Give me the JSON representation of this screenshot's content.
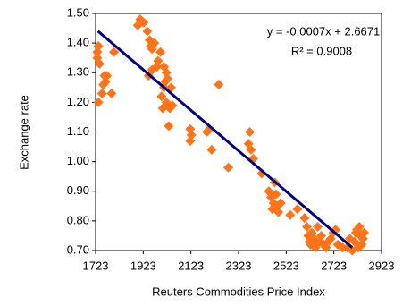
{
  "chart_data": {
    "type": "scatter",
    "xlabel": "Reuters Commodities Price Index",
    "ylabel": "Exchange rate",
    "annotations": [
      "y = -0.0007x + 2.6671",
      "R² = 0.9008"
    ],
    "xlim": [
      1723,
      2923
    ],
    "xticks": [
      1723,
      1923,
      2123,
      2323,
      2523,
      2723,
      2923
    ],
    "ylim": [
      0.7,
      1.5
    ],
    "yticks": [
      {
        "value": 0.7,
        "label": "0.70"
      },
      {
        "value": 0.8,
        "label": "0.80"
      },
      {
        "value": 0.9,
        "label": "0.90"
      },
      {
        "value": 1.0,
        "label": "1.00"
      },
      {
        "value": 1.1,
        "label": "1.10"
      },
      {
        "value": 1.2,
        "label": "1.20"
      },
      {
        "value": 1.3,
        "label": "1.30"
      },
      {
        "value": 1.4,
        "label": "1.40"
      },
      {
        "value": 1.5,
        "label": "1.50"
      }
    ],
    "grid": false,
    "series": [
      {
        "color": "#ff7418",
        "x": [
          1730,
          1730,
          1735,
          1740,
          1735,
          1750,
          1755,
          1760,
          1770,
          1765,
          1790,
          1800,
          1900,
          1910,
          1920,
          1925,
          1940,
          1950,
          1955,
          1960,
          1970,
          1945,
          1960,
          1980,
          1985,
          1995,
          2010,
          2020,
          2015,
          2025,
          2040,
          2000,
          2005,
          2020,
          2035,
          2045,
          2030,
          2010,
          2120,
          2125,
          2120,
          2190,
          2200,
          2210,
          2240,
          2280,
          2370,
          2365,
          2375,
          2385,
          2420,
          2450,
          2460,
          2470,
          2465,
          2475,
          2480,
          2485,
          2490,
          2500,
          2540,
          2570,
          2600,
          2610,
          2615,
          2620,
          2625,
          2630,
          2640,
          2645,
          2650,
          2655,
          2660,
          2670,
          2680,
          2690,
          2700,
          2710,
          2720,
          2730,
          2740,
          2760,
          2780,
          2790,
          2800,
          2810,
          2815,
          2820,
          2830,
          2835,
          2840,
          2845,
          2850,
          2825
        ],
        "values": [
          1.37,
          1.35,
          1.39,
          1.33,
          1.2,
          1.23,
          1.26,
          1.29,
          1.29,
          1.27,
          1.23,
          1.37,
          1.46,
          1.48,
          1.47,
          1.47,
          1.44,
          1.41,
          1.39,
          1.38,
          1.4,
          1.29,
          1.31,
          1.32,
          1.34,
          1.37,
          1.32,
          1.3,
          1.27,
          1.28,
          1.25,
          1.22,
          1.18,
          1.2,
          1.18,
          1.19,
          1.12,
          1.25,
          1.11,
          1.09,
          1.07,
          1.1,
          1.11,
          1.04,
          1.26,
          0.98,
          1.1,
          1.06,
          1.04,
          1.01,
          0.96,
          0.9,
          0.88,
          0.86,
          0.84,
          0.93,
          0.89,
          0.85,
          0.83,
          0.86,
          0.82,
          0.84,
          0.81,
          0.78,
          0.75,
          0.73,
          0.72,
          0.76,
          0.74,
          0.71,
          0.72,
          0.78,
          0.73,
          0.75,
          0.72,
          0.71,
          0.73,
          0.74,
          0.76,
          0.77,
          0.72,
          0.71,
          0.71,
          0.74,
          0.7,
          0.73,
          0.76,
          0.77,
          0.78,
          0.75,
          0.72,
          0.74,
          0.76,
          0.71
        ]
      }
    ],
    "trendline": {
      "color": "#000080",
      "x": [
        1733,
        2800
      ],
      "values": [
        1.44,
        0.71
      ]
    }
  }
}
